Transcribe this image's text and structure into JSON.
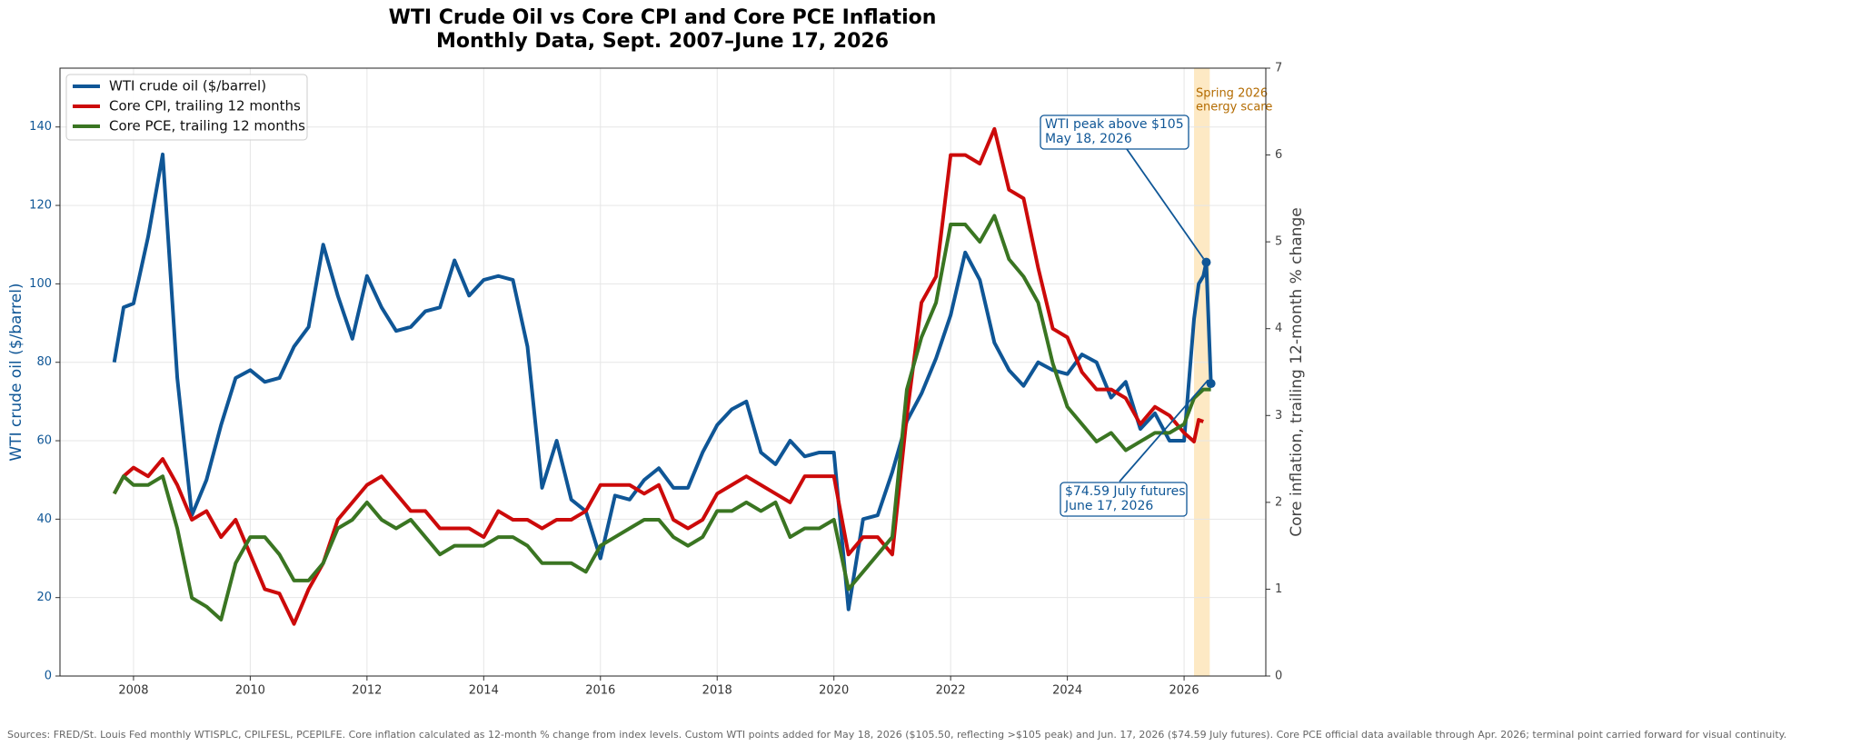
{
  "chart_data": {
    "type": "line",
    "title": [
      "WTI Crude Oil vs Core CPI and Core PCE Inflation",
      "Monthly Data, Sept. 2007–June 17, 2026"
    ],
    "ylabel": "WTI crude oil ($/barrel)",
    "y2label": "Core inflation, trailing 12-month % change",
    "x": [
      2007.67,
      2007.83,
      2008.0,
      2008.25,
      2008.5,
      2008.75,
      2009.0,
      2009.25,
      2009.5,
      2009.75,
      2010.0,
      2010.25,
      2010.5,
      2010.75,
      2011.0,
      2011.25,
      2011.5,
      2011.75,
      2012.0,
      2012.25,
      2012.5,
      2012.75,
      2013.0,
      2013.25,
      2013.5,
      2013.75,
      2014.0,
      2014.25,
      2014.5,
      2014.75,
      2015.0,
      2015.25,
      2015.5,
      2015.75,
      2016.0,
      2016.25,
      2016.5,
      2016.75,
      2017.0,
      2017.25,
      2017.5,
      2017.75,
      2018.0,
      2018.25,
      2018.5,
      2018.75,
      2019.0,
      2019.25,
      2019.5,
      2019.75,
      2020.0,
      2020.25,
      2020.5,
      2020.75,
      2021.0,
      2021.25,
      2021.5,
      2021.75,
      2022.0,
      2022.25,
      2022.5,
      2022.75,
      2023.0,
      2023.25,
      2023.5,
      2023.75,
      2024.0,
      2024.25,
      2024.5,
      2024.75,
      2025.0,
      2025.25,
      2025.5,
      2025.75,
      2026.0,
      2026.17,
      2026.25,
      2026.33,
      2026.38,
      2026.46
    ],
    "series": [
      {
        "name": "WTI crude oil ($/barrel)",
        "color": "#0f5696",
        "axis": "y",
        "values": [
          80,
          94,
          95,
          112,
          133,
          76,
          41,
          50,
          64,
          76,
          78,
          75,
          76,
          84,
          89,
          110,
          97,
          86,
          102,
          94,
          88,
          89,
          93,
          94,
          106,
          97,
          101,
          102,
          101,
          84,
          48,
          60,
          45,
          42,
          30,
          46,
          45,
          50,
          53,
          48,
          48,
          57,
          64,
          68,
          70,
          57,
          54,
          60,
          56,
          57,
          57,
          17,
          40,
          41,
          52,
          65,
          72,
          81,
          92,
          108,
          101,
          85,
          78,
          74,
          80,
          78,
          77,
          82,
          80,
          71,
          75,
          63,
          67,
          60,
          60,
          91,
          100,
          102,
          105.5,
          74.59
        ]
      },
      {
        "name": "Core CPI, trailing 12 months",
        "color": "#cc0a0a",
        "axis": "y2",
        "values": [
          2.1,
          2.3,
          2.4,
          2.3,
          2.5,
          2.2,
          1.8,
          1.9,
          1.6,
          1.8,
          1.4,
          1.0,
          0.95,
          0.6,
          1.0,
          1.3,
          1.8,
          2.0,
          2.2,
          2.3,
          2.1,
          1.9,
          1.9,
          1.7,
          1.7,
          1.7,
          1.6,
          1.9,
          1.8,
          1.8,
          1.7,
          1.8,
          1.8,
          1.9,
          2.2,
          2.2,
          2.2,
          2.1,
          2.2,
          1.8,
          1.7,
          1.8,
          2.1,
          2.2,
          2.3,
          2.2,
          2.1,
          2.0,
          2.3,
          2.3,
          2.3,
          1.4,
          1.6,
          1.6,
          1.4,
          3.0,
          4.3,
          4.6,
          6.0,
          6.0,
          5.9,
          6.3,
          5.6,
          5.5,
          4.7,
          4.0,
          3.9,
          3.5,
          3.3,
          3.3,
          3.2,
          2.9,
          3.1,
          3.0,
          2.8,
          2.7,
          2.95,
          2.93,
          null,
          null
        ]
      },
      {
        "name": "Core PCE, trailing 12 months",
        "color": "#3a7522",
        "axis": "y2",
        "values": [
          2.1,
          2.3,
          2.2,
          2.2,
          2.3,
          1.7,
          0.9,
          0.8,
          0.65,
          1.3,
          1.6,
          1.6,
          1.4,
          1.1,
          1.1,
          1.3,
          1.7,
          1.8,
          2.0,
          1.8,
          1.7,
          1.8,
          1.6,
          1.4,
          1.5,
          1.5,
          1.5,
          1.6,
          1.6,
          1.5,
          1.3,
          1.3,
          1.3,
          1.2,
          1.5,
          1.6,
          1.7,
          1.8,
          1.8,
          1.6,
          1.5,
          1.6,
          1.9,
          1.9,
          2.0,
          1.9,
          2.0,
          1.6,
          1.7,
          1.7,
          1.8,
          1.0,
          1.2,
          1.4,
          1.6,
          3.3,
          3.9,
          4.3,
          5.2,
          5.2,
          5.0,
          5.3,
          4.8,
          4.6,
          4.3,
          3.6,
          3.1,
          2.9,
          2.7,
          2.8,
          2.6,
          2.7,
          2.8,
          2.8,
          2.9,
          3.2,
          3.25,
          3.3,
          3.3,
          3.3
        ]
      }
    ],
    "xlim": [
      2006.74,
      2027.4
    ],
    "xticks": [
      2008,
      2010,
      2012,
      2014,
      2016,
      2018,
      2020,
      2022,
      2024,
      2026
    ],
    "ylim": [
      0,
      155
    ],
    "yticks": [
      0,
      20,
      40,
      60,
      80,
      100,
      120,
      140
    ],
    "y2lim": [
      0,
      7
    ],
    "y2ticks": [
      0,
      1,
      2,
      3,
      4,
      5,
      6,
      7
    ],
    "grid": true,
    "legend": "upper left",
    "shade": {
      "xmin": 2026.17,
      "xmax": 2026.44,
      "color": "#fde9c4",
      "label": [
        "Spring 2026",
        "energy scare"
      ]
    },
    "annotations": [
      {
        "text": [
          "WTI peak above $105",
          "May 18, 2026"
        ]
      },
      {
        "text": [
          "$74.59 July futures",
          "June 17, 2026"
        ]
      }
    ],
    "footnote": "Sources: FRED/St. Louis Fed monthly WTISPLC, CPILFESL, PCEPILFE. Core inflation calculated as 12-month % change from index levels. Custom WTI points added for May 18, 2026 ($105.50, reflecting >$105 peak) and Jun. 17, 2026 ($74.59 July futures). Core PCE official data available through Apr. 2026; terminal point carried forward for visual continuity."
  }
}
